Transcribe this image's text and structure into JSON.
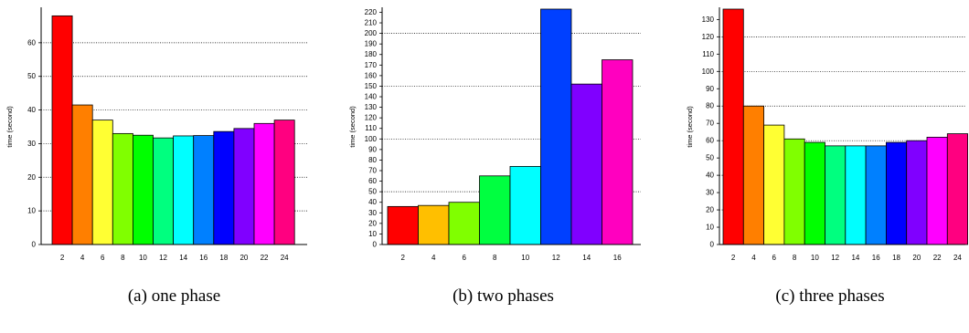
{
  "chart_data": [
    {
      "type": "bar",
      "caption": "(a)  one phase",
      "ylabel": "time (second)",
      "categories": [
        "2",
        "4",
        "6",
        "8",
        "10",
        "12",
        "14",
        "16",
        "18",
        "20",
        "22",
        "24"
      ],
      "values": [
        68,
        41.5,
        37,
        33,
        32.5,
        31.7,
        32.3,
        32.4,
        33.6,
        34.5,
        36,
        37
      ],
      "colors": [
        "#ff0000",
        "#ff7f00",
        "#ffff33",
        "#80ff00",
        "#00ff00",
        "#00ff7f",
        "#00ffff",
        "#0080ff",
        "#0000ff",
        "#8000ff",
        "#ff00ff",
        "#ff0080"
      ],
      "ylim": [
        0,
        70
      ],
      "yticks": [
        0,
        10,
        20,
        30,
        40,
        50,
        60
      ],
      "dotted_grid": [
        10,
        20,
        30,
        40,
        50,
        60
      ],
      "grid": true
    },
    {
      "type": "bar",
      "caption": "(b)  two phases",
      "ylabel": "time (second)",
      "categories": [
        "2",
        "4",
        "6",
        "8",
        "10",
        "12",
        "14",
        "16"
      ],
      "values": [
        36,
        37,
        40,
        65,
        74,
        223,
        152,
        175
      ],
      "colors": [
        "#ff0000",
        "#ffbf00",
        "#80ff00",
        "#00ff40",
        "#00ffff",
        "#0040ff",
        "#8000ff",
        "#ff00bf"
      ],
      "ylim": [
        0,
        223
      ],
      "yticks": [
        0,
        10,
        20,
        30,
        40,
        50,
        60,
        70,
        80,
        90,
        100,
        110,
        120,
        130,
        140,
        150,
        160,
        170,
        180,
        190,
        200,
        210,
        220
      ],
      "dotted_grid": [
        50,
        100,
        150,
        200
      ],
      "grid": true
    },
    {
      "type": "bar",
      "caption": "(c)  three phases",
      "ylabel": "time (second)",
      "categories": [
        "2",
        "4",
        "6",
        "8",
        "10",
        "12",
        "14",
        "16",
        "18",
        "20",
        "22",
        "24"
      ],
      "values": [
        136,
        80,
        69,
        61,
        59,
        57,
        57,
        57,
        59,
        60,
        62,
        64
      ],
      "colors": [
        "#ff0000",
        "#ff7f00",
        "#ffff33",
        "#80ff00",
        "#00ff00",
        "#00ff7f",
        "#00ffff",
        "#0080ff",
        "#0000ff",
        "#8000ff",
        "#ff00ff",
        "#ff0080"
      ],
      "ylim": [
        0,
        136
      ],
      "yticks": [
        0,
        10,
        20,
        30,
        40,
        50,
        60,
        70,
        80,
        90,
        100,
        110,
        120,
        130
      ],
      "dotted_grid": [
        20,
        40,
        60,
        80,
        100,
        120
      ],
      "grid": true
    }
  ]
}
